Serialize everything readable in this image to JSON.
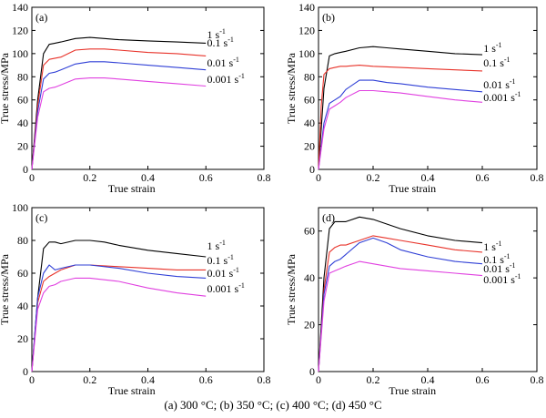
{
  "caption": "(a) 300 °C; (b) 350 °C; (c) 400 °C; (d) 450 °C",
  "colors": {
    "1 s-1": "#000000",
    "0.1 s-1": "#e8332a",
    "0.01 s-1": "#2f3fd6",
    "0.001 s-1": "#e040e0"
  },
  "chart_data": [
    {
      "type": "line",
      "label": "(a)",
      "xlabel": "True strain",
      "ylabel": "True stress/MPa",
      "xlim": [
        0,
        0.8
      ],
      "ylim": [
        0,
        140
      ],
      "xticks": [
        0,
        0.2,
        0.4,
        0.6,
        0.8
      ],
      "yticks": [
        0,
        20,
        40,
        60,
        80,
        100,
        120,
        140
      ],
      "series": [
        {
          "name": "1 s",
          "sup": "-1",
          "color": "#000000",
          "x": [
            0,
            0.02,
            0.04,
            0.06,
            0.08,
            0.1,
            0.15,
            0.2,
            0.25,
            0.3,
            0.4,
            0.5,
            0.6
          ],
          "y": [
            0,
            60,
            100,
            108,
            109,
            110,
            113,
            114,
            113,
            112,
            111,
            110,
            109
          ]
        },
        {
          "name": "0.1 s",
          "sup": "-1",
          "color": "#e8332a",
          "x": [
            0,
            0.02,
            0.04,
            0.06,
            0.08,
            0.1,
            0.15,
            0.2,
            0.25,
            0.3,
            0.4,
            0.5,
            0.6
          ],
          "y": [
            0,
            55,
            90,
            95,
            96,
            97,
            103,
            104,
            104,
            103,
            101,
            100,
            98
          ]
        },
        {
          "name": "0.01 s",
          "sup": "-1",
          "color": "#2f3fd6",
          "x": [
            0,
            0.02,
            0.04,
            0.06,
            0.08,
            0.1,
            0.15,
            0.2,
            0.25,
            0.3,
            0.4,
            0.5,
            0.6
          ],
          "y": [
            0,
            50,
            78,
            83,
            84,
            86,
            91,
            93,
            93,
            92,
            90,
            88,
            86
          ]
        },
        {
          "name": "0.001 s",
          "sup": "-1",
          "color": "#e040e0",
          "x": [
            0,
            0.02,
            0.04,
            0.06,
            0.08,
            0.1,
            0.15,
            0.2,
            0.25,
            0.3,
            0.4,
            0.5,
            0.6
          ],
          "y": [
            0,
            45,
            67,
            70,
            71,
            73,
            78,
            79,
            79,
            78,
            76,
            74,
            72
          ]
        }
      ]
    },
    {
      "type": "line",
      "label": "(b)",
      "xlabel": "True strain",
      "ylabel": "True stress/MPa",
      "xlim": [
        0,
        0.8
      ],
      "ylim": [
        0,
        140
      ],
      "xticks": [
        0,
        0.2,
        0.4,
        0.6,
        0.8
      ],
      "yticks": [
        0,
        20,
        40,
        60,
        80,
        100,
        120,
        140
      ],
      "series": [
        {
          "name": "1 s",
          "sup": "-1",
          "color": "#000000",
          "x": [
            0,
            0.02,
            0.04,
            0.06,
            0.08,
            0.1,
            0.15,
            0.2,
            0.25,
            0.3,
            0.4,
            0.5,
            0.6
          ],
          "y": [
            0,
            70,
            98,
            100,
            101,
            102,
            105,
            106,
            105,
            104,
            102,
            100,
            99
          ]
        },
        {
          "name": "0.1 s",
          "sup": "-1",
          "color": "#e8332a",
          "x": [
            0,
            0.01,
            0.02,
            0.04,
            0.06,
            0.08,
            0.1,
            0.15,
            0.2,
            0.3,
            0.4,
            0.5,
            0.6
          ],
          "y": [
            0,
            55,
            82,
            87,
            88,
            89,
            89,
            90,
            89,
            88,
            87,
            86,
            85
          ]
        },
        {
          "name": "0.01 s",
          "sup": "-1",
          "color": "#2f3fd6",
          "x": [
            0,
            0.02,
            0.04,
            0.06,
            0.08,
            0.1,
            0.15,
            0.2,
            0.25,
            0.3,
            0.4,
            0.5,
            0.6
          ],
          "y": [
            0,
            40,
            57,
            60,
            63,
            69,
            77,
            77,
            75,
            74,
            71,
            69,
            67
          ]
        },
        {
          "name": "0.001 s",
          "sup": "-1",
          "color": "#e040e0",
          "x": [
            0,
            0.02,
            0.04,
            0.06,
            0.08,
            0.1,
            0.15,
            0.2,
            0.25,
            0.3,
            0.4,
            0.5,
            0.6
          ],
          "y": [
            0,
            35,
            52,
            55,
            58,
            62,
            68,
            68,
            67,
            66,
            63,
            60,
            58
          ]
        }
      ]
    },
    {
      "type": "line",
      "label": "(c)",
      "xlabel": "True strain",
      "ylabel": "True stress/MPa",
      "xlim": [
        0,
        0.8
      ],
      "ylim": [
        0,
        100
      ],
      "xticks": [
        0,
        0.2,
        0.4,
        0.6,
        0.8
      ],
      "yticks": [
        0,
        20,
        40,
        60,
        80,
        100
      ],
      "series": [
        {
          "name": "1 s",
          "sup": "-1",
          "color": "#000000",
          "x": [
            0,
            0.02,
            0.04,
            0.06,
            0.08,
            0.1,
            0.15,
            0.2,
            0.25,
            0.3,
            0.4,
            0.5,
            0.6
          ],
          "y": [
            0,
            45,
            75,
            79,
            79,
            78,
            80,
            80,
            79,
            77,
            74,
            72,
            70
          ]
        },
        {
          "name": "0.1 s",
          "sup": "-1",
          "color": "#e8332a",
          "x": [
            0,
            0.02,
            0.04,
            0.06,
            0.08,
            0.1,
            0.15,
            0.2,
            0.3,
            0.4,
            0.5,
            0.6
          ],
          "y": [
            0,
            42,
            55,
            58,
            60,
            62,
            65,
            65,
            64,
            63,
            62,
            62
          ]
        },
        {
          "name": "0.01 s",
          "sup": "-1",
          "color": "#2f3fd6",
          "x": [
            0,
            0.02,
            0.04,
            0.06,
            0.08,
            0.1,
            0.15,
            0.2,
            0.3,
            0.4,
            0.5,
            0.6
          ],
          "y": [
            0,
            45,
            60,
            65,
            62,
            63,
            65,
            65,
            63,
            60,
            58,
            57
          ]
        },
        {
          "name": "0.001 s",
          "sup": "-1",
          "color": "#e040e0",
          "x": [
            0,
            0.02,
            0.04,
            0.06,
            0.08,
            0.1,
            0.15,
            0.2,
            0.3,
            0.4,
            0.5,
            0.6
          ],
          "y": [
            0,
            38,
            48,
            52,
            53,
            55,
            57,
            57,
            55,
            51,
            48,
            46
          ]
        }
      ]
    },
    {
      "type": "line",
      "label": "(d)",
      "xlabel": "True strain",
      "ylabel": "True stress/MPa",
      "xlim": [
        0,
        0.8
      ],
      "ylim": [
        0,
        70
      ],
      "xticks": [
        0,
        0.2,
        0.4,
        0.6,
        0.8
      ],
      "yticks": [
        0,
        20,
        40,
        60
      ],
      "series": [
        {
          "name": "1 s",
          "sup": "-1",
          "color": "#000000",
          "x": [
            0,
            0.02,
            0.04,
            0.06,
            0.08,
            0.1,
            0.15,
            0.2,
            0.25,
            0.3,
            0.4,
            0.5,
            0.6
          ],
          "y": [
            0,
            40,
            61,
            64,
            64,
            64,
            66,
            65,
            63,
            61,
            58,
            56,
            55
          ]
        },
        {
          "name": "0.1 s",
          "sup": "-1",
          "color": "#e8332a",
          "x": [
            0,
            0.02,
            0.04,
            0.06,
            0.08,
            0.1,
            0.15,
            0.2,
            0.25,
            0.3,
            0.4,
            0.5,
            0.6
          ],
          "y": [
            0,
            35,
            51,
            53,
            54,
            54,
            56,
            58,
            57,
            56,
            54,
            52,
            51
          ]
        },
        {
          "name": "0.01 s",
          "sup": "-1",
          "color": "#2f3fd6",
          "x": [
            0,
            0.02,
            0.04,
            0.06,
            0.08,
            0.1,
            0.15,
            0.2,
            0.25,
            0.3,
            0.4,
            0.5,
            0.6
          ],
          "y": [
            0,
            33,
            45,
            47,
            48,
            50,
            55,
            57,
            55,
            52,
            49,
            47,
            46
          ]
        },
        {
          "name": "0.001 s",
          "sup": "-1",
          "color": "#e040e0",
          "x": [
            0,
            0.02,
            0.04,
            0.06,
            0.08,
            0.1,
            0.15,
            0.2,
            0.25,
            0.3,
            0.4,
            0.5,
            0.6
          ],
          "y": [
            0,
            30,
            42,
            43,
            44,
            45,
            47,
            46,
            45,
            44,
            43,
            42,
            41
          ]
        }
      ]
    }
  ]
}
